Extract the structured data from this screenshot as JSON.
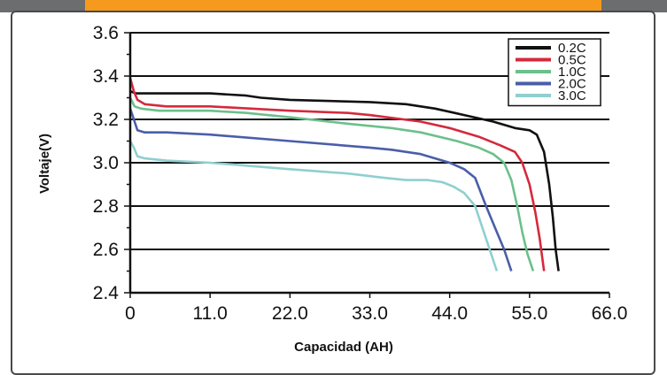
{
  "chart_data": {
    "type": "line",
    "xlabel": "Capacidad (AH)",
    "ylabel": "Voltaje(V)",
    "xlim": [
      0,
      66
    ],
    "ylim": [
      2.4,
      3.6
    ],
    "x_ticks": [
      "0",
      "11.0",
      "22.0",
      "33.0",
      "44.0",
      "55.0",
      "66.0"
    ],
    "x_tick_values": [
      0,
      11,
      22,
      33,
      44,
      55,
      66
    ],
    "y_ticks": [
      "2.4",
      "2.6",
      "2.8",
      "3.0",
      "3.2",
      "3.4",
      "3.6"
    ],
    "y_tick_values": [
      2.4,
      2.6,
      2.8,
      3.0,
      3.2,
      3.4,
      3.6
    ],
    "grid": "horizontal",
    "legend_position": "top-right",
    "series": [
      {
        "name": "0.2C",
        "color": "#111111",
        "points": [
          [
            0,
            3.33
          ],
          [
            0.8,
            3.32
          ],
          [
            3,
            3.32
          ],
          [
            11,
            3.32
          ],
          [
            16,
            3.31
          ],
          [
            18,
            3.3
          ],
          [
            22,
            3.29
          ],
          [
            33,
            3.28
          ],
          [
            38,
            3.27
          ],
          [
            42,
            3.25
          ],
          [
            46,
            3.22
          ],
          [
            50,
            3.19
          ],
          [
            53,
            3.16
          ],
          [
            55,
            3.15
          ],
          [
            56,
            3.13
          ],
          [
            57,
            3.05
          ],
          [
            57.7,
            2.9
          ],
          [
            58.2,
            2.75
          ],
          [
            58.6,
            2.6
          ],
          [
            59,
            2.5
          ]
        ]
      },
      {
        "name": "0.5C",
        "color": "#d42a3c",
        "points": [
          [
            0,
            3.39
          ],
          [
            0.5,
            3.33
          ],
          [
            1,
            3.29
          ],
          [
            2,
            3.27
          ],
          [
            5,
            3.26
          ],
          [
            11,
            3.26
          ],
          [
            22,
            3.24
          ],
          [
            30,
            3.23
          ],
          [
            33,
            3.22
          ],
          [
            40,
            3.19
          ],
          [
            44,
            3.16
          ],
          [
            48,
            3.12
          ],
          [
            51,
            3.08
          ],
          [
            53,
            3.05
          ],
          [
            54,
            3.0
          ],
          [
            55,
            2.9
          ],
          [
            55.8,
            2.77
          ],
          [
            56.4,
            2.65
          ],
          [
            57,
            2.5
          ]
        ]
      },
      {
        "name": "1.0C",
        "color": "#6cc08a",
        "points": [
          [
            0,
            3.3
          ],
          [
            0.6,
            3.26
          ],
          [
            1.5,
            3.25
          ],
          [
            4,
            3.24
          ],
          [
            11,
            3.24
          ],
          [
            16,
            3.23
          ],
          [
            22,
            3.21
          ],
          [
            30,
            3.18
          ],
          [
            36,
            3.16
          ],
          [
            40,
            3.14
          ],
          [
            45,
            3.1
          ],
          [
            48,
            3.07
          ],
          [
            50,
            3.04
          ],
          [
            51.5,
            3.0
          ],
          [
            52.5,
            2.92
          ],
          [
            53.3,
            2.8
          ],
          [
            54,
            2.68
          ],
          [
            54.7,
            2.58
          ],
          [
            55.5,
            2.5
          ]
        ]
      },
      {
        "name": "2.0C",
        "color": "#4a5ea8",
        "points": [
          [
            0,
            3.25
          ],
          [
            0.5,
            3.2
          ],
          [
            1,
            3.15
          ],
          [
            2,
            3.14
          ],
          [
            5,
            3.14
          ],
          [
            11,
            3.13
          ],
          [
            22,
            3.1
          ],
          [
            33,
            3.07
          ],
          [
            36,
            3.06
          ],
          [
            40,
            3.04
          ],
          [
            44,
            3.0
          ],
          [
            46,
            2.97
          ],
          [
            47.5,
            2.93
          ],
          [
            49,
            2.8
          ],
          [
            50.5,
            2.68
          ],
          [
            51.5,
            2.6
          ],
          [
            52.5,
            2.5
          ]
        ]
      },
      {
        "name": "3.0C",
        "color": "#8fcfcf",
        "points": [
          [
            0,
            3.1
          ],
          [
            0.5,
            3.07
          ],
          [
            1,
            3.03
          ],
          [
            2,
            3.02
          ],
          [
            5,
            3.01
          ],
          [
            11,
            3.0
          ],
          [
            22,
            2.97
          ],
          [
            30,
            2.95
          ],
          [
            35,
            2.93
          ],
          [
            38,
            2.92
          ],
          [
            41,
            2.92
          ],
          [
            43,
            2.91
          ],
          [
            44.5,
            2.89
          ],
          [
            46,
            2.86
          ],
          [
            47.5,
            2.8
          ],
          [
            48.5,
            2.7
          ],
          [
            49.5,
            2.6
          ],
          [
            50.5,
            2.5
          ]
        ]
      }
    ]
  }
}
